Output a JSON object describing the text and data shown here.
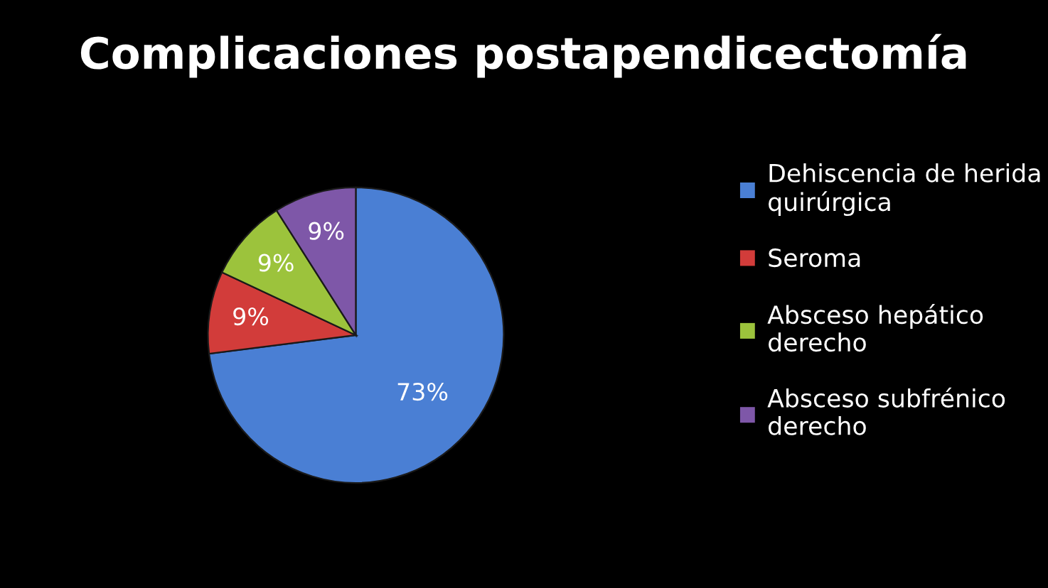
{
  "chart_data": {
    "type": "pie",
    "title": "Complicaciones postapendicectomía",
    "categories": [
      "Dehiscencia de herida quirúrgica",
      "Seroma",
      "Absceso hepático derecho",
      "Absceso subfrénico derecho"
    ],
    "values": [
      73,
      9,
      9,
      9
    ],
    "colors": [
      "#4a7fd4",
      "#d23c3a",
      "#9cc33c",
      "#7e57a8"
    ],
    "value_labels": [
      "73%",
      "9%",
      "9%",
      "9%"
    ],
    "legend": "right"
  }
}
